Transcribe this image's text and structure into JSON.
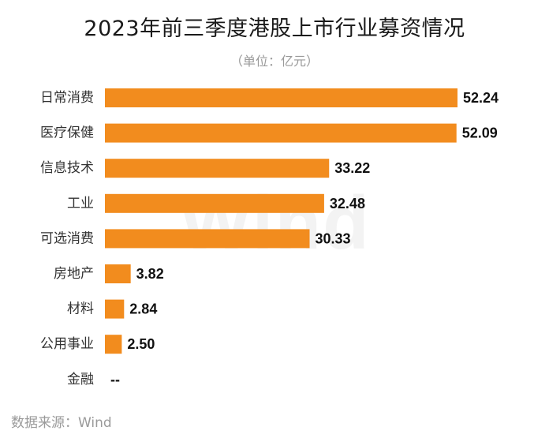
{
  "chart_data": {
    "type": "bar",
    "orientation": "horizontal",
    "title": "2023年前三季度港股上市行业募资情况",
    "subtitle": "（单位：亿元）",
    "categories": [
      "日常消费",
      "医疗保健",
      "信息技术",
      "工业",
      "可选消费",
      "房地产",
      "材料",
      "公用事业",
      "金融"
    ],
    "values": [
      52.24,
      52.09,
      33.22,
      32.48,
      30.33,
      3.82,
      2.84,
      2.5,
      null
    ],
    "value_labels": [
      "52.24",
      "52.09",
      "33.22",
      "32.48",
      "30.33",
      "3.82",
      "2.84",
      "2.50",
      "--"
    ],
    "bar_color": "#f28c1e",
    "xlim": [
      0,
      52.24
    ],
    "grid": false,
    "legend": "none"
  },
  "source": "数据来源：Wind",
  "watermark": "Wind"
}
